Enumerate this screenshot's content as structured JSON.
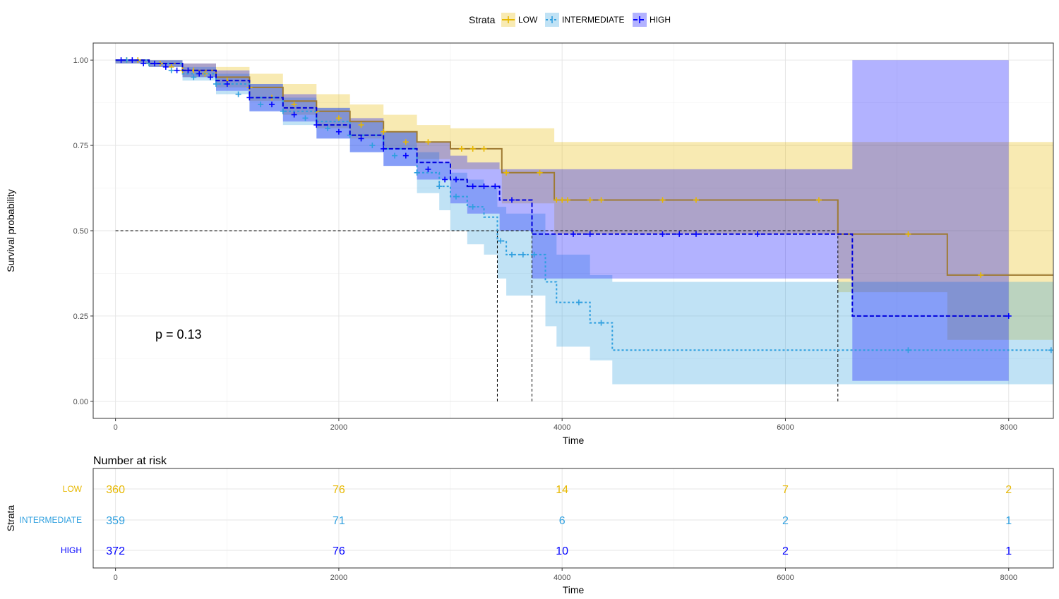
{
  "chart_data": {
    "type": "line",
    "subtype": "kaplan-meier",
    "ylabel": "Survival probability",
    "xlabel": "Time",
    "xlim": [
      -200,
      8400
    ],
    "ylim": [
      -0.05,
      1.05
    ],
    "x_ticks": [
      0,
      2000,
      4000,
      6000,
      8000
    ],
    "y_ticks": [
      0.0,
      0.25,
      0.5,
      0.75,
      1.0
    ],
    "y_tick_labels": [
      "0.00",
      "0.25",
      "0.50",
      "0.75",
      "1.00"
    ],
    "grid": true,
    "legend": {
      "title": "Strata",
      "position": "top",
      "entries": [
        "LOW",
        "INTERMEDIATE",
        "HIGH"
      ]
    },
    "pvalue_text": "p = 0.13",
    "median_line_y": 0.5,
    "medians": [
      {
        "series": "INTERMEDIATE",
        "x": 3420
      },
      {
        "series": "HIGH",
        "x": 3730
      },
      {
        "series": "LOW",
        "x": 6470
      }
    ],
    "series": [
      {
        "name": "LOW",
        "color": "#E7B800",
        "line_color": "#9E7A33",
        "dash": "solid",
        "steps": [
          [
            0,
            1.0
          ],
          [
            300,
            0.99
          ],
          [
            600,
            0.97
          ],
          [
            900,
            0.95
          ],
          [
            1200,
            0.92
          ],
          [
            1500,
            0.88
          ],
          [
            1800,
            0.85
          ],
          [
            2100,
            0.82
          ],
          [
            2400,
            0.79
          ],
          [
            2700,
            0.76
          ],
          [
            3000,
            0.74
          ],
          [
            3460,
            0.67
          ],
          [
            3930,
            0.59
          ],
          [
            6470,
            0.49
          ],
          [
            7450,
            0.37
          ],
          [
            8400,
            0.37
          ]
        ],
        "upper": [
          [
            0,
            1.0
          ],
          [
            300,
            1.0
          ],
          [
            600,
            0.99
          ],
          [
            900,
            0.98
          ],
          [
            1200,
            0.96
          ],
          [
            1500,
            0.93
          ],
          [
            1800,
            0.9
          ],
          [
            2100,
            0.87
          ],
          [
            2400,
            0.84
          ],
          [
            2700,
            0.81
          ],
          [
            3000,
            0.8
          ],
          [
            3460,
            0.8
          ],
          [
            3930,
            0.76
          ],
          [
            6470,
            0.76
          ],
          [
            7450,
            0.76
          ],
          [
            8400,
            0.76
          ]
        ],
        "lower": [
          [
            0,
            0.99
          ],
          [
            300,
            0.98
          ],
          [
            600,
            0.95
          ],
          [
            900,
            0.92
          ],
          [
            1200,
            0.88
          ],
          [
            1500,
            0.84
          ],
          [
            1800,
            0.8
          ],
          [
            2100,
            0.77
          ],
          [
            2400,
            0.74
          ],
          [
            2700,
            0.71
          ],
          [
            3000,
            0.68
          ],
          [
            3460,
            0.58
          ],
          [
            3930,
            0.49
          ],
          [
            6470,
            0.32
          ],
          [
            7450,
            0.18
          ],
          [
            8400,
            0.18
          ]
        ],
        "censors": [
          [
            100,
            1.0
          ],
          [
            200,
            1.0
          ],
          [
            300,
            0.99
          ],
          [
            400,
            0.99
          ],
          [
            500,
            0.98
          ],
          [
            600,
            0.97
          ],
          [
            700,
            0.97
          ],
          [
            800,
            0.96
          ],
          [
            1000,
            0.94
          ],
          [
            1200,
            0.92
          ],
          [
            1400,
            0.89
          ],
          [
            1600,
            0.87
          ],
          [
            1800,
            0.85
          ],
          [
            2000,
            0.83
          ],
          [
            2200,
            0.81
          ],
          [
            2400,
            0.79
          ],
          [
            2600,
            0.76
          ],
          [
            2800,
            0.76
          ],
          [
            3100,
            0.74
          ],
          [
            3200,
            0.74
          ],
          [
            3300,
            0.74
          ],
          [
            3500,
            0.67
          ],
          [
            3800,
            0.67
          ],
          [
            3950,
            0.59
          ],
          [
            4000,
            0.59
          ],
          [
            4050,
            0.59
          ],
          [
            4250,
            0.59
          ],
          [
            4350,
            0.59
          ],
          [
            4900,
            0.59
          ],
          [
            5200,
            0.59
          ],
          [
            6300,
            0.59
          ],
          [
            7100,
            0.49
          ],
          [
            7750,
            0.37
          ]
        ]
      },
      {
        "name": "INTERMEDIATE",
        "color": "#2E9FDF",
        "line_color": "#2E9FDF",
        "dash": "3,3",
        "steps": [
          [
            0,
            1.0
          ],
          [
            300,
            0.99
          ],
          [
            600,
            0.96
          ],
          [
            900,
            0.93
          ],
          [
            1200,
            0.89
          ],
          [
            1500,
            0.85
          ],
          [
            1800,
            0.82
          ],
          [
            2100,
            0.78
          ],
          [
            2400,
            0.74
          ],
          [
            2700,
            0.67
          ],
          [
            2900,
            0.63
          ],
          [
            3000,
            0.6
          ],
          [
            3150,
            0.57
          ],
          [
            3300,
            0.54
          ],
          [
            3420,
            0.47
          ],
          [
            3500,
            0.43
          ],
          [
            3850,
            0.35
          ],
          [
            3950,
            0.29
          ],
          [
            4250,
            0.23
          ],
          [
            4450,
            0.15
          ],
          [
            8400,
            0.15
          ]
        ],
        "upper": [
          [
            0,
            1.0
          ],
          [
            300,
            1.0
          ],
          [
            600,
            0.98
          ],
          [
            900,
            0.96
          ],
          [
            1200,
            0.93
          ],
          [
            1500,
            0.89
          ],
          [
            1800,
            0.86
          ],
          [
            2100,
            0.82
          ],
          [
            2400,
            0.79
          ],
          [
            2700,
            0.73
          ],
          [
            2900,
            0.7
          ],
          [
            3000,
            0.67
          ],
          [
            3150,
            0.65
          ],
          [
            3300,
            0.63
          ],
          [
            3420,
            0.57
          ],
          [
            3500,
            0.55
          ],
          [
            3850,
            0.49
          ],
          [
            3950,
            0.43
          ],
          [
            4250,
            0.37
          ],
          [
            4450,
            0.35
          ],
          [
            8400,
            0.35
          ]
        ],
        "lower": [
          [
            0,
            0.99
          ],
          [
            300,
            0.98
          ],
          [
            600,
            0.94
          ],
          [
            900,
            0.9
          ],
          [
            1200,
            0.85
          ],
          [
            1500,
            0.81
          ],
          [
            1800,
            0.77
          ],
          [
            2100,
            0.73
          ],
          [
            2400,
            0.69
          ],
          [
            2700,
            0.61
          ],
          [
            2900,
            0.56
          ],
          [
            3000,
            0.5
          ],
          [
            3150,
            0.46
          ],
          [
            3300,
            0.43
          ],
          [
            3420,
            0.36
          ],
          [
            3500,
            0.31
          ],
          [
            3850,
            0.22
          ],
          [
            3950,
            0.16
          ],
          [
            4250,
            0.12
          ],
          [
            4450,
            0.05
          ],
          [
            8400,
            0.05
          ]
        ],
        "censors": [
          [
            100,
            1.0
          ],
          [
            300,
            0.99
          ],
          [
            500,
            0.97
          ],
          [
            700,
            0.95
          ],
          [
            900,
            0.93
          ],
          [
            1100,
            0.9
          ],
          [
            1300,
            0.87
          ],
          [
            1500,
            0.85
          ],
          [
            1700,
            0.83
          ],
          [
            1900,
            0.8
          ],
          [
            2100,
            0.78
          ],
          [
            2300,
            0.75
          ],
          [
            2500,
            0.72
          ],
          [
            2700,
            0.67
          ],
          [
            2900,
            0.63
          ],
          [
            3050,
            0.6
          ],
          [
            3200,
            0.57
          ],
          [
            3450,
            0.47
          ],
          [
            3550,
            0.43
          ],
          [
            3650,
            0.43
          ],
          [
            3750,
            0.43
          ],
          [
            4150,
            0.29
          ],
          [
            4350,
            0.23
          ],
          [
            7100,
            0.15
          ],
          [
            8380,
            0.15
          ]
        ]
      },
      {
        "name": "HIGH",
        "color": "#0000FF",
        "line_color": "#0000DD",
        "dash": "6,3",
        "steps": [
          [
            0,
            1.0
          ],
          [
            300,
            0.99
          ],
          [
            600,
            0.97
          ],
          [
            900,
            0.94
          ],
          [
            1200,
            0.89
          ],
          [
            1500,
            0.86
          ],
          [
            1800,
            0.81
          ],
          [
            2100,
            0.78
          ],
          [
            2400,
            0.74
          ],
          [
            2700,
            0.7
          ],
          [
            3000,
            0.65
          ],
          [
            3150,
            0.63
          ],
          [
            3440,
            0.59
          ],
          [
            3730,
            0.49
          ],
          [
            6600,
            0.25
          ],
          [
            8000,
            0.25
          ]
        ],
        "upper": [
          [
            0,
            1.0
          ],
          [
            300,
            1.0
          ],
          [
            600,
            0.99
          ],
          [
            900,
            0.97
          ],
          [
            1200,
            0.93
          ],
          [
            1500,
            0.9
          ],
          [
            1800,
            0.86
          ],
          [
            2100,
            0.83
          ],
          [
            2400,
            0.79
          ],
          [
            2700,
            0.76
          ],
          [
            3000,
            0.72
          ],
          [
            3150,
            0.7
          ],
          [
            3440,
            0.68
          ],
          [
            3730,
            0.68
          ],
          [
            6600,
            1.0
          ],
          [
            8000,
            1.0
          ]
        ],
        "lower": [
          [
            0,
            0.99
          ],
          [
            300,
            0.98
          ],
          [
            600,
            0.95
          ],
          [
            900,
            0.91
          ],
          [
            1200,
            0.85
          ],
          [
            1500,
            0.82
          ],
          [
            1800,
            0.77
          ],
          [
            2100,
            0.73
          ],
          [
            2400,
            0.69
          ],
          [
            2700,
            0.65
          ],
          [
            3000,
            0.58
          ],
          [
            3150,
            0.55
          ],
          [
            3440,
            0.5
          ],
          [
            3730,
            0.36
          ],
          [
            6600,
            0.06
          ],
          [
            8000,
            0.06
          ]
        ],
        "censors": [
          [
            50,
            1.0
          ],
          [
            150,
            1.0
          ],
          [
            250,
            0.99
          ],
          [
            350,
            0.99
          ],
          [
            450,
            0.98
          ],
          [
            550,
            0.97
          ],
          [
            650,
            0.97
          ],
          [
            750,
            0.96
          ],
          [
            850,
            0.95
          ],
          [
            1000,
            0.93
          ],
          [
            1200,
            0.89
          ],
          [
            1400,
            0.87
          ],
          [
            1600,
            0.84
          ],
          [
            1800,
            0.81
          ],
          [
            2000,
            0.79
          ],
          [
            2200,
            0.77
          ],
          [
            2400,
            0.74
          ],
          [
            2600,
            0.72
          ],
          [
            2800,
            0.68
          ],
          [
            2950,
            0.65
          ],
          [
            3050,
            0.65
          ],
          [
            3200,
            0.63
          ],
          [
            3300,
            0.63
          ],
          [
            3400,
            0.63
          ],
          [
            3550,
            0.59
          ],
          [
            4100,
            0.49
          ],
          [
            4250,
            0.49
          ],
          [
            4900,
            0.49
          ],
          [
            5050,
            0.49
          ],
          [
            5200,
            0.49
          ],
          [
            5750,
            0.49
          ],
          [
            8000,
            0.25
          ]
        ]
      }
    ]
  },
  "risk_table": {
    "title": "Number at risk",
    "ylabel": "Strata",
    "xlabel": "Time",
    "times": [
      0,
      2000,
      4000,
      6000,
      8000
    ],
    "rows": [
      {
        "name": "LOW",
        "color": "#E7B800",
        "values": [
          "360",
          "76",
          "14",
          "7",
          "2"
        ]
      },
      {
        "name": "INTERMEDIATE",
        "color": "#2E9FDF",
        "values": [
          "359",
          "71",
          "6",
          "2",
          "1"
        ]
      },
      {
        "name": "HIGH",
        "color": "#0000FF",
        "values": [
          "372",
          "76",
          "10",
          "2",
          "1"
        ]
      }
    ]
  }
}
